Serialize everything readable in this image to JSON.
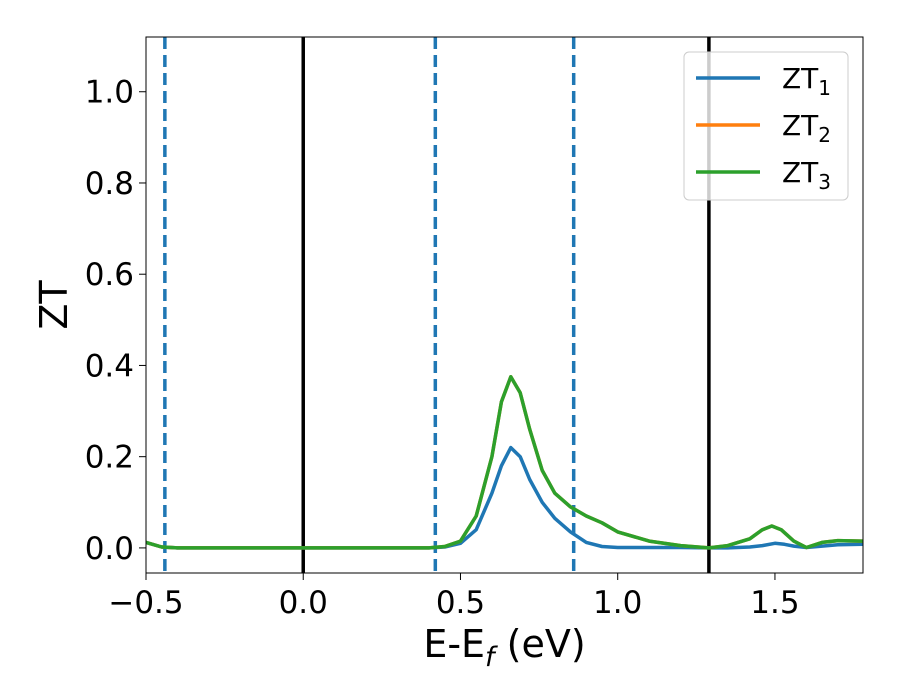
{
  "chart_data": {
    "type": "line",
    "title": "",
    "xlabel": "E-E",
    "xlabel_sub": "f",
    "xlabel_unit": " (eV)",
    "ylabel": "ZT",
    "xlim": [
      -0.5,
      1.78
    ],
    "ylim": [
      -0.055,
      1.12
    ],
    "grid": false,
    "legend_position": "top-right",
    "x_ticks": [
      {
        "value": -0.5,
        "label": "−0.5"
      },
      {
        "value": 0.0,
        "label": "0.0"
      },
      {
        "value": 0.5,
        "label": "0.5"
      },
      {
        "value": 1.0,
        "label": "1.0"
      },
      {
        "value": 1.5,
        "label": "1.5"
      }
    ],
    "y_ticks": [
      {
        "value": 0.0,
        "label": "0.0"
      },
      {
        "value": 0.2,
        "label": "0.2"
      },
      {
        "value": 0.4,
        "label": "0.4"
      },
      {
        "value": 0.6,
        "label": "0.6"
      },
      {
        "value": 0.8,
        "label": "0.8"
      },
      {
        "value": 1.0,
        "label": "1.0"
      }
    ],
    "vlines": [
      {
        "x": 0.0,
        "style": "solid",
        "color": "#000000"
      },
      {
        "x": 1.29,
        "style": "solid",
        "color": "#000000"
      },
      {
        "x": -0.44,
        "style": "dashed",
        "color": "#1f77b4"
      },
      {
        "x": 0.42,
        "style": "dashed",
        "color": "#1f77b4"
      },
      {
        "x": 0.86,
        "style": "dashed",
        "color": "#1f77b4"
      }
    ],
    "series": [
      {
        "name": "ZT",
        "name_sub": "1",
        "color": "#1f77b4",
        "x": [
          -0.5,
          -0.45,
          -0.4,
          0.0,
          0.4,
          0.45,
          0.5,
          0.55,
          0.6,
          0.63,
          0.66,
          0.69,
          0.72,
          0.76,
          0.8,
          0.85,
          0.9,
          0.95,
          1.0,
          1.2,
          1.29,
          1.35,
          1.42,
          1.46,
          1.5,
          1.53,
          1.56,
          1.6,
          1.65,
          1.7,
          1.78
        ],
        "y": [
          0.012,
          0.002,
          0.0,
          0.0,
          0.0,
          0.002,
          0.01,
          0.04,
          0.12,
          0.18,
          0.22,
          0.2,
          0.15,
          0.1,
          0.065,
          0.035,
          0.012,
          0.003,
          0.001,
          0.001,
          0.0,
          0.0,
          0.002,
          0.005,
          0.01,
          0.008,
          0.004,
          0.001,
          0.004,
          0.007,
          0.008
        ]
      },
      {
        "name": "ZT",
        "name_sub": "2",
        "color": "#ff7f0e",
        "x": [
          -0.5,
          -0.45,
          -0.4,
          0.0,
          0.4,
          0.45,
          0.5,
          0.55,
          0.6,
          0.63,
          0.66,
          0.69,
          0.72,
          0.76,
          0.8,
          0.85,
          0.9,
          0.95,
          1.0,
          1.1,
          1.2,
          1.29,
          1.35,
          1.42,
          1.46,
          1.49,
          1.52,
          1.56,
          1.6,
          1.65,
          1.7,
          1.78
        ],
        "y": [
          0.012,
          0.002,
          0.0,
          0.0,
          0.0,
          0.003,
          0.015,
          0.07,
          0.2,
          0.32,
          0.375,
          0.34,
          0.26,
          0.17,
          0.12,
          0.09,
          0.07,
          0.055,
          0.035,
          0.015,
          0.005,
          0.0,
          0.005,
          0.02,
          0.04,
          0.048,
          0.04,
          0.015,
          0.001,
          0.012,
          0.016,
          0.015
        ]
      },
      {
        "name": "ZT",
        "name_sub": "3",
        "color": "#2ca02c",
        "x": [
          -0.5,
          -0.45,
          -0.4,
          0.0,
          0.4,
          0.45,
          0.5,
          0.55,
          0.6,
          0.63,
          0.66,
          0.69,
          0.72,
          0.76,
          0.8,
          0.85,
          0.9,
          0.95,
          1.0,
          1.1,
          1.2,
          1.29,
          1.35,
          1.42,
          1.46,
          1.49,
          1.52,
          1.56,
          1.6,
          1.65,
          1.7,
          1.78
        ],
        "y": [
          0.012,
          0.002,
          0.0,
          0.0,
          0.0,
          0.003,
          0.015,
          0.07,
          0.2,
          0.32,
          0.375,
          0.34,
          0.26,
          0.17,
          0.12,
          0.09,
          0.07,
          0.055,
          0.035,
          0.015,
          0.005,
          0.0,
          0.005,
          0.02,
          0.04,
          0.048,
          0.04,
          0.015,
          0.001,
          0.012,
          0.016,
          0.015
        ]
      }
    ]
  }
}
